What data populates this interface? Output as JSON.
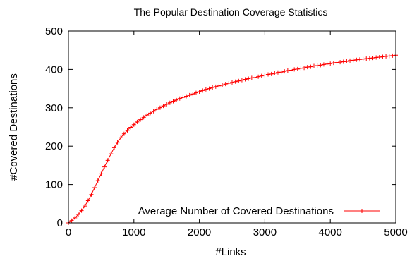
{
  "chart_data": {
    "type": "line",
    "title": "The Popular Destination Coverage Statistics",
    "xlabel": "#Links",
    "ylabel": "#Covered Destinations",
    "xlim": [
      0,
      5000
    ],
    "ylim": [
      0,
      500
    ],
    "xticks": [
      0,
      1000,
      2000,
      3000,
      4000,
      5000
    ],
    "yticks": [
      0,
      100,
      200,
      300,
      400,
      500
    ],
    "grid": false,
    "legend_position": "bottom-right",
    "series": [
      {
        "name": "Average Number of Covered Destinations",
        "color": "#ff0000",
        "marker": "plus",
        "x": [
          0,
          50,
          100,
          150,
          200,
          250,
          300,
          350,
          400,
          450,
          500,
          550,
          600,
          650,
          700,
          750,
          800,
          850,
          900,
          950,
          1000,
          1050,
          1100,
          1150,
          1200,
          1250,
          1300,
          1350,
          1400,
          1450,
          1500,
          1550,
          1600,
          1650,
          1700,
          1750,
          1800,
          1850,
          1900,
          1950,
          2000,
          2050,
          2100,
          2150,
          2200,
          2250,
          2300,
          2350,
          2400,
          2450,
          2500,
          2550,
          2600,
          2650,
          2700,
          2750,
          2800,
          2850,
          2900,
          2950,
          3000,
          3050,
          3100,
          3150,
          3200,
          3250,
          3300,
          3350,
          3400,
          3450,
          3500,
          3550,
          3600,
          3650,
          3700,
          3750,
          3800,
          3850,
          3900,
          3950,
          4000,
          4050,
          4100,
          4150,
          4200,
          4250,
          4300,
          4350,
          4400,
          4450,
          4500,
          4550,
          4600,
          4650,
          4700,
          4750,
          4800,
          4850,
          4900,
          4950,
          5000
        ],
        "y": [
          0,
          6,
          13,
          22,
          32,
          44,
          58,
          74,
          92,
          110,
          128,
          146,
          163,
          180,
          196,
          210,
          222,
          232,
          241,
          249,
          256,
          263,
          269,
          275,
          281,
          286,
          291,
          296,
          300,
          305,
          309,
          313,
          317,
          320,
          324,
          327,
          330,
          333,
          336,
          339,
          342,
          345,
          348,
          350,
          353,
          355,
          357,
          359,
          362,
          364,
          366,
          368,
          370,
          372,
          374,
          376,
          378,
          379,
          381,
          383,
          385,
          387,
          388,
          390,
          392,
          393,
          395,
          397,
          398,
          400,
          401,
          403,
          404,
          406,
          407,
          409,
          410,
          411,
          413,
          414,
          415,
          417,
          418,
          419,
          420,
          421,
          423,
          424,
          425,
          426,
          427,
          428,
          429,
          430,
          431,
          432,
          433,
          434,
          435,
          436,
          437
        ]
      }
    ]
  }
}
